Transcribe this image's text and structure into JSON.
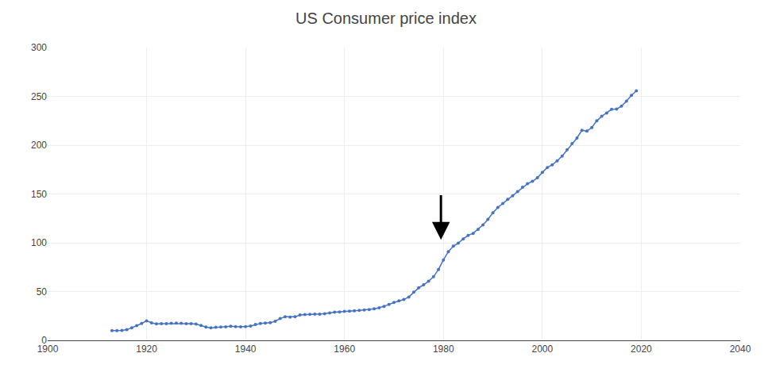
{
  "chart_data": {
    "type": "line",
    "title": "US Consumer price index",
    "x": [
      1913,
      1914,
      1915,
      1916,
      1917,
      1918,
      1919,
      1920,
      1921,
      1922,
      1923,
      1924,
      1925,
      1926,
      1927,
      1928,
      1929,
      1930,
      1931,
      1932,
      1933,
      1934,
      1935,
      1936,
      1937,
      1938,
      1939,
      1940,
      1941,
      1942,
      1943,
      1944,
      1945,
      1946,
      1947,
      1948,
      1949,
      1950,
      1951,
      1952,
      1953,
      1954,
      1955,
      1956,
      1957,
      1958,
      1959,
      1960,
      1961,
      1962,
      1963,
      1964,
      1965,
      1966,
      1967,
      1968,
      1969,
      1970,
      1971,
      1972,
      1973,
      1974,
      1975,
      1976,
      1977,
      1978,
      1979,
      1980,
      1981,
      1982,
      1983,
      1984,
      1985,
      1986,
      1987,
      1988,
      1989,
      1990,
      1991,
      1992,
      1993,
      1994,
      1995,
      1996,
      1997,
      1998,
      1999,
      2000,
      2001,
      2002,
      2003,
      2004,
      2005,
      2006,
      2007,
      2008,
      2009,
      2010,
      2011,
      2012,
      2013,
      2014,
      2015,
      2016,
      2017,
      2018,
      2019
    ],
    "values": [
      9.9,
      10.0,
      10.1,
      10.9,
      12.8,
      15.0,
      17.3,
      20.0,
      17.9,
      16.8,
      17.1,
      17.1,
      17.5,
      17.7,
      17.4,
      17.1,
      17.1,
      16.7,
      15.2,
      13.6,
      12.9,
      13.4,
      13.7,
      13.9,
      14.4,
      14.1,
      13.9,
      14.0,
      14.7,
      16.3,
      17.3,
      17.6,
      18.0,
      19.5,
      22.3,
      24.1,
      23.8,
      24.1,
      26.0,
      26.5,
      26.7,
      26.9,
      26.8,
      27.2,
      28.1,
      28.9,
      29.1,
      29.6,
      29.9,
      30.2,
      30.6,
      31.0,
      31.5,
      32.4,
      33.4,
      34.8,
      36.7,
      38.8,
      40.5,
      41.8,
      44.4,
      49.3,
      53.8,
      56.9,
      60.6,
      65.2,
      72.6,
      82.4,
      90.9,
      96.5,
      99.6,
      103.9,
      107.6,
      109.6,
      113.6,
      118.3,
      124.0,
      130.7,
      136.2,
      140.3,
      144.5,
      148.2,
      152.4,
      156.9,
      160.5,
      163.0,
      166.6,
      172.2,
      177.1,
      179.9,
      184.0,
      188.9,
      195.3,
      201.6,
      207.3,
      215.3,
      214.5,
      218.1,
      224.9,
      229.6,
      232.9,
      236.7,
      237.0,
      240.0,
      245.1,
      251.1,
      255.7
    ],
    "color": "#4472c4",
    "marker": "circle",
    "line_style": "solid",
    "xlim": [
      1900,
      2040
    ],
    "ylim": [
      0,
      300
    ],
    "xticks": [
      1900,
      1920,
      1940,
      1960,
      1980,
      2000,
      2020,
      2040
    ],
    "yticks": [
      0,
      50,
      100,
      150,
      200,
      250,
      300
    ],
    "grid": true,
    "annotations": [
      {
        "x": 1979.5,
        "y": 103,
        "from_y": 150
      }
    ]
  }
}
